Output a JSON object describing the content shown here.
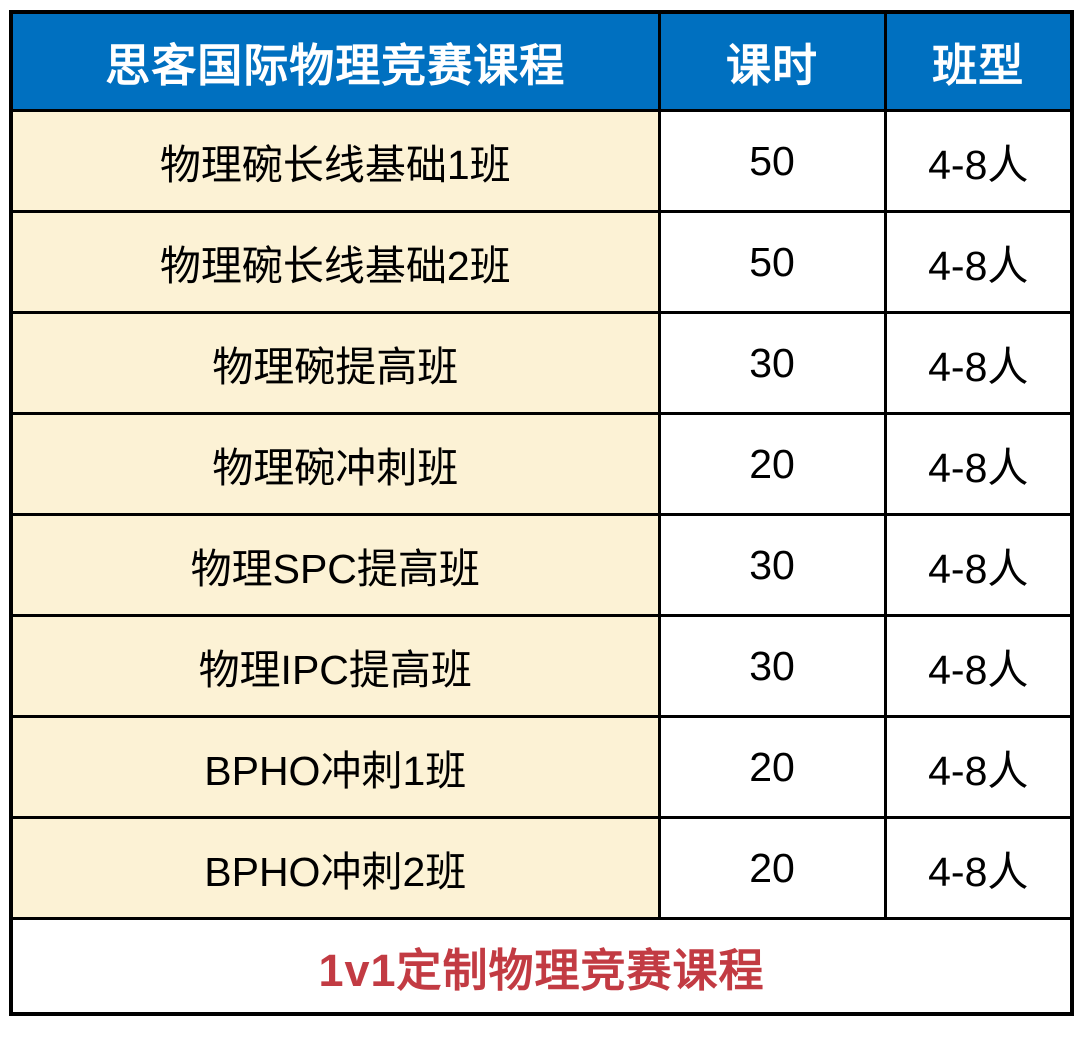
{
  "chart_data": {
    "type": "table",
    "title": "思客国际物理竞赛课程",
    "columns": [
      "思客国际物理竞赛课程",
      "课时",
      "班型"
    ],
    "rows": [
      [
        "物理碗长线基础1班",
        "50",
        "4-8人"
      ],
      [
        "物理碗长线基础2班",
        "50",
        "4-8人"
      ],
      [
        "物理碗提高班",
        "30",
        "4-8人"
      ],
      [
        "物理碗冲刺班",
        "20",
        "4-8人"
      ],
      [
        "物理SPC提高班",
        "30",
        "4-8人"
      ],
      [
        "物理IPC提高班",
        "30",
        "4-8人"
      ],
      [
        "BPHO冲刺1班",
        "20",
        "4-8人"
      ],
      [
        "BPHO冲刺2班",
        "20",
        "4-8人"
      ]
    ],
    "footer": "1v1定制物理竞赛课程"
  },
  "colors": {
    "header_bg": "#0070C0",
    "header_text": "#FFFFFF",
    "course_cell_bg": "#FCF2D5",
    "value_cell_bg": "#FFFFFF",
    "border": "#000000",
    "footer_text": "#C23B43",
    "body_text": "#000000"
  }
}
